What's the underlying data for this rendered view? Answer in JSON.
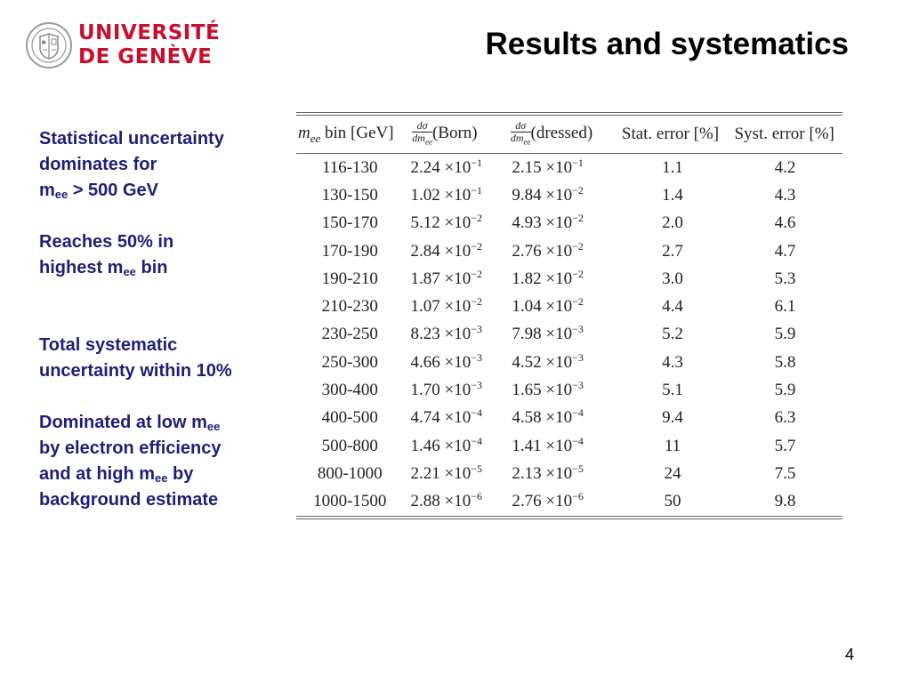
{
  "logo": {
    "line1": "UNIVERSITÉ",
    "line2": "DE GENÈVE",
    "color": "#c8102e"
  },
  "title": "Results and systematics",
  "notes": {
    "n1_line1": "Statistical uncertainty",
    "n1_line2": "dominates for",
    "n1_m": "m",
    "n1_sub": "ee",
    "n1_rest": " > 500 GeV",
    "n2_line1": "Reaches 50% in",
    "n2_line2a": "highest m",
    "n2_sub": "ee",
    "n2_line2b": " bin",
    "n3_line1": "Total systematic",
    "n3_line2": "uncertainty within 10%",
    "n4_line1a": "Dominated at low m",
    "n4_sub1": "ee",
    "n4_line2": "by electron efficiency",
    "n4_line3a": "and at high m",
    "n4_sub2": "ee",
    "n4_line3b": " by",
    "n4_line4": "background estimate"
  },
  "table": {
    "headers": {
      "mee_var": "m",
      "mee_sub": "ee",
      "mee_rest": " bin [GeV]",
      "frac_num": "dσ",
      "frac_den": "dm",
      "frac_den_sub": "ee",
      "born": "(Born)",
      "dressed": "(dressed)",
      "stat": "Stat. error [%]",
      "syst": "Syst. error [%]"
    },
    "rows": [
      {
        "bin": "116-130",
        "born_m": "2.24 ×10",
        "born_e": "−1",
        "dressed_m": "2.15 ×10",
        "dressed_e": "−1",
        "stat": "1.1",
        "syst": "4.2"
      },
      {
        "bin": "130-150",
        "born_m": "1.02 ×10",
        "born_e": "−1",
        "dressed_m": "9.84 ×10",
        "dressed_e": "−2",
        "stat": "1.4",
        "syst": "4.3"
      },
      {
        "bin": "150-170",
        "born_m": "5.12 ×10",
        "born_e": "−2",
        "dressed_m": "4.93 ×10",
        "dressed_e": "−2",
        "stat": "2.0",
        "syst": "4.6"
      },
      {
        "bin": "170-190",
        "born_m": "2.84 ×10",
        "born_e": "−2",
        "dressed_m": "2.76 ×10",
        "dressed_e": "−2",
        "stat": "2.7",
        "syst": "4.7"
      },
      {
        "bin": "190-210",
        "born_m": "1.87 ×10",
        "born_e": "−2",
        "dressed_m": "1.82 ×10",
        "dressed_e": "−2",
        "stat": "3.0",
        "syst": "5.3"
      },
      {
        "bin": "210-230",
        "born_m": "1.07 ×10",
        "born_e": "−2",
        "dressed_m": "1.04 ×10",
        "dressed_e": "−2",
        "stat": "4.4",
        "syst": "6.1"
      },
      {
        "bin": "230-250",
        "born_m": "8.23 ×10",
        "born_e": "−3",
        "dressed_m": "7.98 ×10",
        "dressed_e": "−3",
        "stat": "5.2",
        "syst": "5.9"
      },
      {
        "bin": "250-300",
        "born_m": "4.66 ×10",
        "born_e": "−3",
        "dressed_m": "4.52 ×10",
        "dressed_e": "−3",
        "stat": "4.3",
        "syst": "5.8"
      },
      {
        "bin": "300-400",
        "born_m": "1.70 ×10",
        "born_e": "−3",
        "dressed_m": "1.65 ×10",
        "dressed_e": "−3",
        "stat": "5.1",
        "syst": "5.9"
      },
      {
        "bin": "400-500",
        "born_m": "4.74 ×10",
        "born_e": "−4",
        "dressed_m": "4.58 ×10",
        "dressed_e": "−4",
        "stat": "9.4",
        "syst": "6.3"
      },
      {
        "bin": "500-800",
        "born_m": "1.46 ×10",
        "born_e": "−4",
        "dressed_m": "1.41 ×10",
        "dressed_e": "−4",
        "stat": "11",
        "syst": "5.7"
      },
      {
        "bin": "800-1000",
        "born_m": "2.21 ×10",
        "born_e": "−5",
        "dressed_m": "2.13 ×10",
        "dressed_e": "−5",
        "stat": "24",
        "syst": "7.5"
      },
      {
        "bin": "1000-1500",
        "born_m": "2.88 ×10",
        "born_e": "−6",
        "dressed_m": "2.76 ×10",
        "dressed_e": "−6",
        "stat": "50",
        "syst": "9.8"
      }
    ]
  },
  "page_number": "4"
}
